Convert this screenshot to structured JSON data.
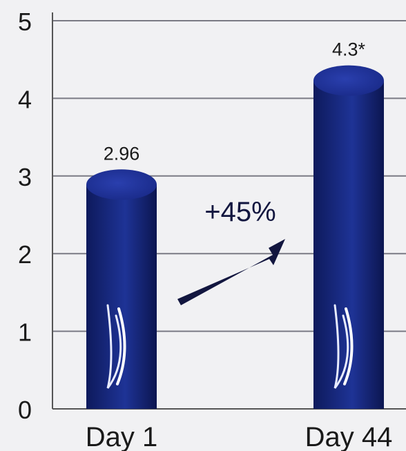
{
  "chart_data": {
    "type": "bar",
    "categories": [
      "Day 1",
      "Day 44"
    ],
    "values": [
      2.96,
      4.3
    ],
    "data_labels": [
      "2.96",
      "4.3*"
    ],
    "ylim": [
      0,
      5
    ],
    "yticks": [
      "0",
      "1",
      "2",
      "3",
      "4",
      "5"
    ],
    "grid": true,
    "title": "",
    "xlabel": "",
    "ylabel": "",
    "annotation": "+45%",
    "bar_color": "#1b2d8c",
    "bar_top_color": "#2236a0",
    "arrow_color": "#12163f",
    "grid_color": "#7a7a84"
  }
}
